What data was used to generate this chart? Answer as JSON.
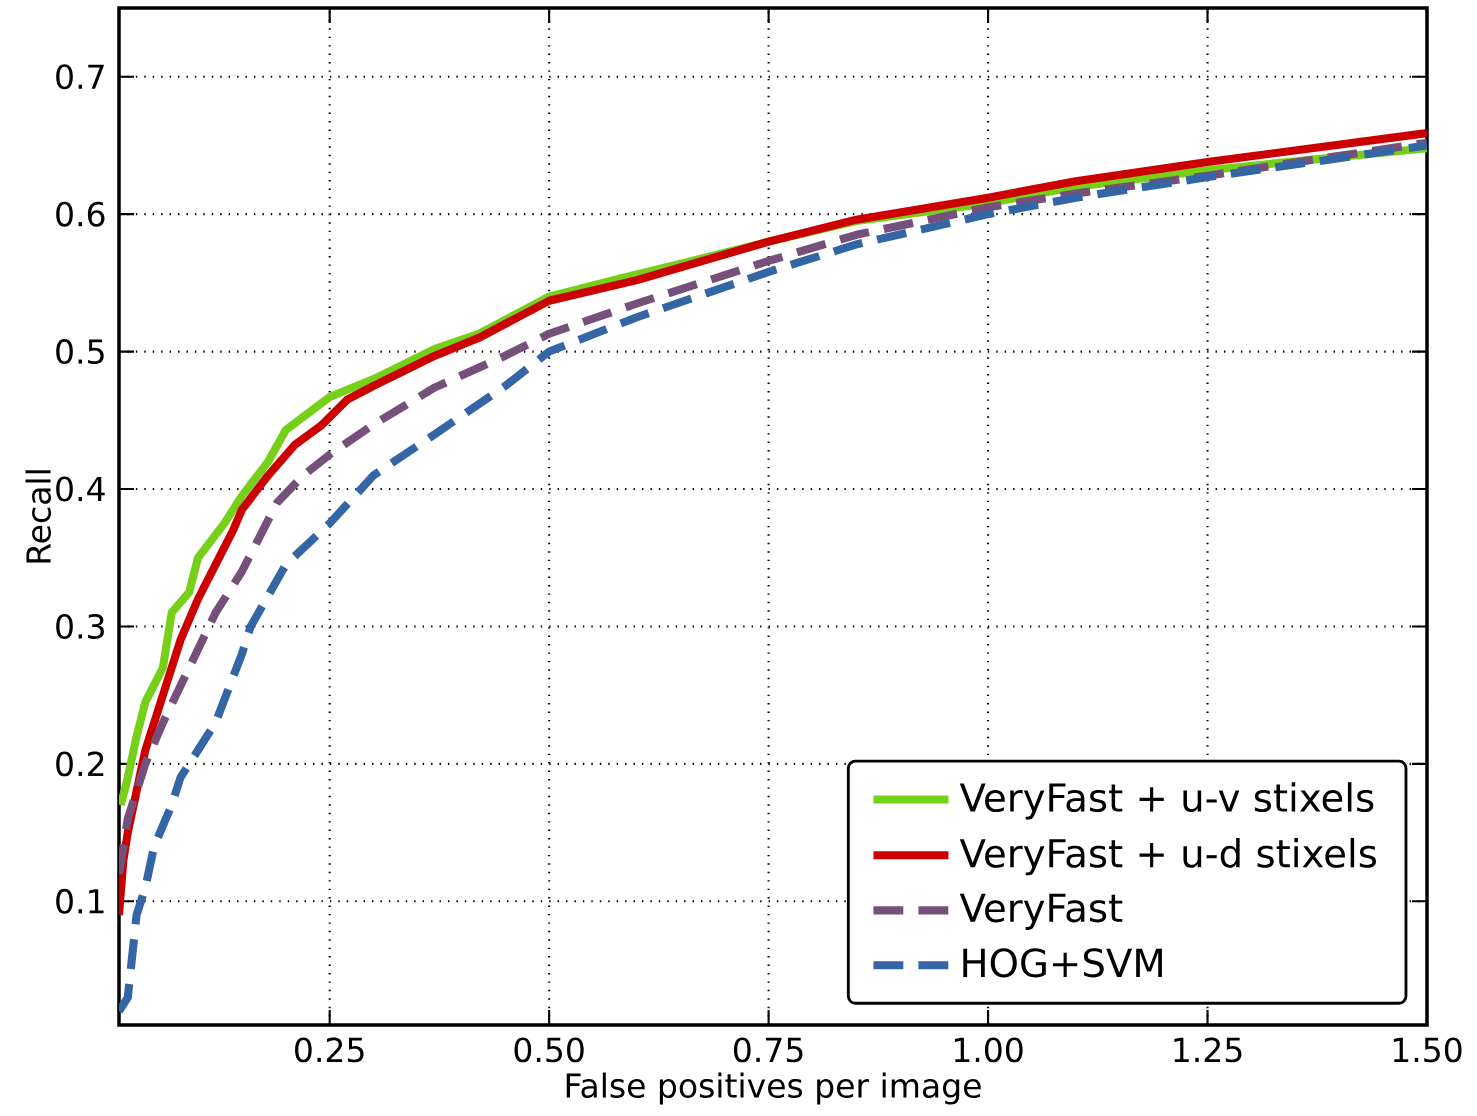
{
  "chart_data": {
    "type": "line",
    "xlabel": "False positives per image",
    "ylabel": "Recall",
    "xlim": [
      0.01,
      1.5
    ],
    "ylim": [
      0.01,
      0.75
    ],
    "xticks": [
      0.25,
      {
        "value": 0.5,
        "label": "0.50"
      },
      0.75,
      {
        "value": 1.0,
        "label": "1.00"
      },
      1.25,
      {
        "value": 1.5,
        "label": "1.50"
      }
    ],
    "yticks": [
      0.1,
      0.2,
      0.3,
      0.4,
      0.5,
      0.6,
      0.7
    ],
    "grid": true,
    "legend": "bottom right",
    "series": [
      {
        "name": "VeryFast + u-v stixels",
        "color": "#76d017",
        "line_style": "solid",
        "x": [
          0.012,
          0.02,
          0.03,
          0.04,
          0.06,
          0.07,
          0.09,
          0.1,
          0.13,
          0.15,
          0.18,
          0.2,
          0.25,
          0.3,
          0.37,
          0.42,
          0.5,
          0.58,
          0.65,
          0.75,
          0.85,
          1.0,
          1.1,
          1.25,
          1.5
        ],
        "values": [
          0.17,
          0.19,
          0.22,
          0.245,
          0.27,
          0.31,
          0.325,
          0.35,
          0.375,
          0.395,
          0.42,
          0.443,
          0.467,
          0.48,
          0.502,
          0.513,
          0.54,
          0.553,
          0.564,
          0.58,
          0.595,
          0.608,
          0.62,
          0.632,
          0.648
        ]
      },
      {
        "name": "VeryFast + u-d stixels",
        "color": "#cc0000",
        "line_style": "solid",
        "x": [
          0.01,
          0.015,
          0.02,
          0.03,
          0.04,
          0.06,
          0.08,
          0.1,
          0.12,
          0.14,
          0.15,
          0.18,
          0.21,
          0.24,
          0.27,
          0.3,
          0.37,
          0.42,
          0.5,
          0.6,
          0.75,
          0.85,
          1.0,
          1.1,
          1.25,
          1.5
        ],
        "values": [
          0.09,
          0.13,
          0.15,
          0.18,
          0.21,
          0.25,
          0.29,
          0.32,
          0.345,
          0.37,
          0.385,
          0.41,
          0.432,
          0.446,
          0.465,
          0.475,
          0.497,
          0.51,
          0.537,
          0.552,
          0.58,
          0.596,
          0.612,
          0.624,
          0.638,
          0.659
        ]
      },
      {
        "name": "VeryFast",
        "color": "#75507b",
        "line_style": "dashed",
        "x": [
          0.01,
          0.02,
          0.04,
          0.06,
          0.09,
          0.12,
          0.15,
          0.19,
          0.22,
          0.25,
          0.3,
          0.37,
          0.45,
          0.5,
          0.6,
          0.75,
          0.85,
          1.0,
          1.1,
          1.25,
          1.5
        ],
        "values": [
          0.12,
          0.16,
          0.2,
          0.23,
          0.27,
          0.31,
          0.34,
          0.39,
          0.41,
          0.425,
          0.447,
          0.474,
          0.497,
          0.513,
          0.535,
          0.566,
          0.585,
          0.605,
          0.615,
          0.628,
          0.652
        ]
      },
      {
        "name": "HOG+SVM",
        "color": "#3465a4",
        "line_style": "dashed",
        "x": [
          0.01,
          0.02,
          0.025,
          0.03,
          0.04,
          0.05,
          0.07,
          0.08,
          0.1,
          0.12,
          0.15,
          0.16,
          0.2,
          0.25,
          0.3,
          0.37,
          0.45,
          0.5,
          0.6,
          0.75,
          0.85,
          1.0,
          1.1,
          1.25,
          1.5
        ],
        "values": [
          0.02,
          0.03,
          0.06,
          0.09,
          0.11,
          0.14,
          0.17,
          0.19,
          0.21,
          0.23,
          0.28,
          0.3,
          0.345,
          0.375,
          0.41,
          0.44,
          0.475,
          0.5,
          0.525,
          0.558,
          0.578,
          0.6,
          0.612,
          0.627,
          0.65
        ]
      }
    ]
  }
}
